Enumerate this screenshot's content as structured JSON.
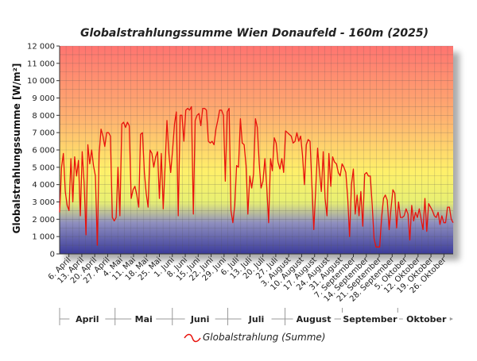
{
  "chart_data": {
    "type": "line",
    "title": "Globalstrahlungssumme Wien Donaufeld - 160m (2025)",
    "ylabel": "Globalstrahlungssumme [W/m²]",
    "ylim": [
      0,
      12000
    ],
    "y_ticks": [
      "0",
      "1 000",
      "2 000",
      "3 000",
      "4 000",
      "5 000",
      "6 000",
      "7 000",
      "8 000",
      "9 000",
      "10 000",
      "11 000",
      "12 000"
    ],
    "x_start": "2025-04-01",
    "x_end": "2025-10-31",
    "x_tick_labels": [
      "6. April",
      "13. April",
      "20. April",
      "27. April",
      "4. Mai",
      "11. Mai",
      "18. Mai",
      "25. Mai",
      "1. Juni",
      "8. Juni",
      "15. Juni",
      "22. Juni",
      "29. Juni",
      "6. Juli",
      "13. Juli",
      "20. Juli",
      "27. Juli",
      "3. August",
      "10. August",
      "17. August",
      "24. August",
      "31. August",
      "7. September",
      "14. September",
      "21. September",
      "28. September",
      "5. Oktober",
      "12. Oktober",
      "19. Oktober",
      "26. Oktober"
    ],
    "months": [
      "April",
      "Mai",
      "Juni",
      "Juli",
      "August",
      "September",
      "Oktober"
    ],
    "grid": true,
    "legend_position": "bottom",
    "series": [
      {
        "name": "Globalstrahlung (Summe)",
        "color": "#e8120c",
        "values": [
          2400,
          5000,
          5800,
          3600,
          2800,
          2500,
          5500,
          3000,
          5600,
          4500,
          5400,
          2200,
          5900,
          4100,
          1100,
          6300,
          5200,
          6000,
          5100,
          4500,
          500,
          5800,
          7200,
          6800,
          6200,
          7000,
          7000,
          6800,
          2100,
          1900,
          2100,
          5000,
          2200,
          7500,
          7600,
          7300,
          7600,
          7400,
          3200,
          3700,
          3900,
          3400,
          2700,
          6900,
          7000,
          4700,
          3500,
          2700,
          6000,
          5800,
          5000,
          5600,
          5900,
          3200,
          5800,
          2600,
          5000,
          7700,
          5800,
          4700,
          6000,
          7500,
          8200,
          2200,
          8000,
          8000,
          6500,
          8300,
          8400,
          8300,
          8500,
          2300,
          7700,
          8000,
          8100,
          7400,
          8400,
          8400,
          8300,
          6500,
          6400,
          6500,
          6300,
          7200,
          7700,
          8300,
          8300,
          8000,
          4200,
          8200,
          8400,
          2500,
          1800,
          2800,
          5100,
          5000,
          7800,
          6400,
          6300,
          5100,
          2300,
          4500,
          3800,
          4600,
          7800,
          7300,
          5200,
          3800,
          4200,
          5500,
          3900,
          1800,
          5500,
          4800,
          6700,
          6400,
          5300,
          4900,
          5500,
          4700,
          7100,
          7000,
          6900,
          6800,
          6400,
          6500,
          7000,
          6500,
          6800,
          5700,
          4000,
          6300,
          6600,
          6500,
          3900,
          1400,
          3700,
          6100,
          4800,
          3600,
          5900,
          3200,
          2200,
          5800,
          3900,
          5600,
          5300,
          5200,
          4700,
          4500,
          5200,
          5000,
          4700,
          3200,
          1000,
          4000,
          4900,
          2300,
          3400,
          2200,
          3600,
          1600,
          4600,
          4700,
          4500,
          4500,
          2800,
          900,
          400,
          400,
          400,
          2100,
          3200,
          3400,
          3100,
          1400,
          2600,
          3700,
          3500,
          1500,
          3000,
          2100,
          2100,
          2200,
          2600,
          2300,
          800,
          2800,
          1900,
          2400,
          2100,
          2600,
          2000,
          1400,
          3200,
          1300,
          2900,
          2700,
          2500,
          2200,
          2100,
          2400,
          1700,
          2200,
          1800,
          1800,
          2700,
          2700,
          2000,
          1800
        ]
      }
    ]
  }
}
